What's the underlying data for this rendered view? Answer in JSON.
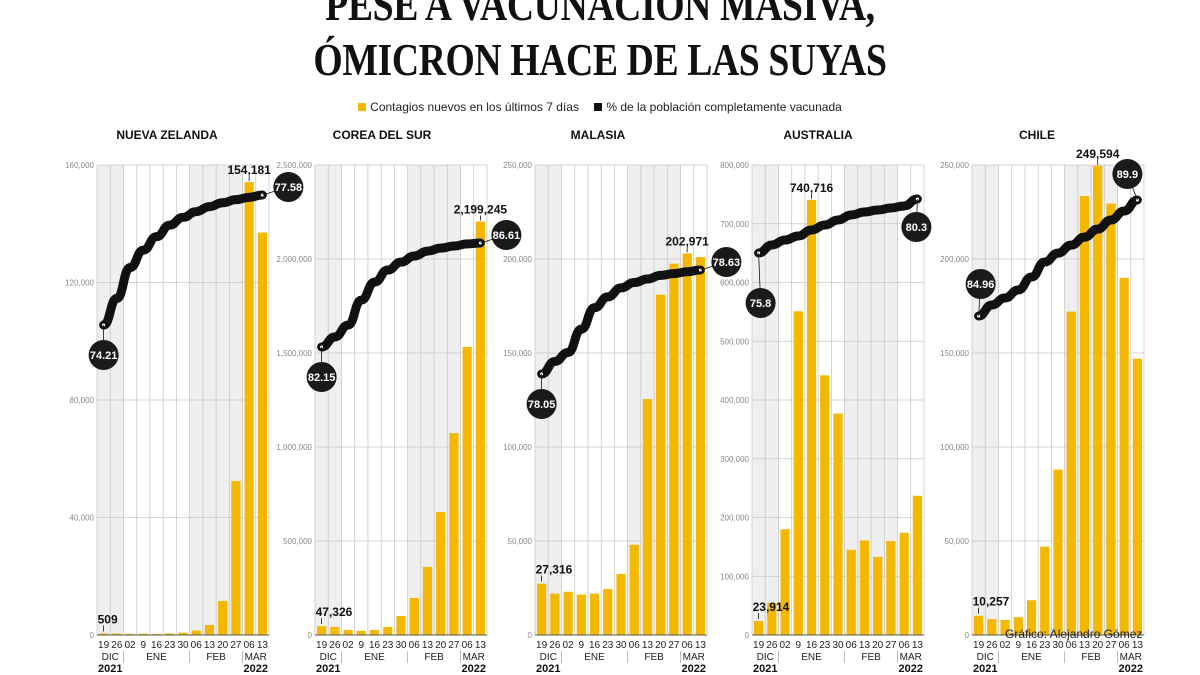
{
  "title": {
    "line1": "PESE A VACUNACIÓN MASIVA,",
    "line2": "ÓMICRON HACE DE LAS SUYAS"
  },
  "legend": {
    "cases_label": "Contagios nuevos en los últimos 7 días",
    "vaccinated_label": "% de la población completamente vacunada"
  },
  "colors": {
    "bar": "#f5b800",
    "line": "#111111",
    "shade": "#efefef",
    "grid": "#c8c8c8"
  },
  "credit": "Gráfico: Alejandro Gómez",
  "chart_data": [
    {
      "type": "bar",
      "title": "NUEVA ZELANDA",
      "categories": [
        "19",
        "26",
        "02",
        "9",
        "16",
        "23",
        "30",
        "06",
        "13",
        "20",
        "27",
        "06",
        "13"
      ],
      "month_labels": [
        {
          "label": "DIC",
          "from": 0,
          "to": 1
        },
        {
          "label": "ENE",
          "from": 2,
          "to": 6
        },
        {
          "label": "FEB",
          "from": 7,
          "to": 10
        },
        {
          "label": "MAR",
          "from": 11,
          "to": 12
        }
      ],
      "year_labels": {
        "start": "2021",
        "end": "2022"
      },
      "yticks": [
        0,
        40000,
        80000,
        120000,
        160000
      ],
      "ytick_labels": [
        "0",
        "40,000",
        "80,000",
        "120,000",
        "160,000"
      ],
      "ylim": [
        0,
        160000
      ],
      "series": [
        {
          "name": "Contagios nuevos en los últimos 7 días",
          "values": [
            509,
            500,
            400,
            450,
            400,
            550,
            800,
            1500,
            3400,
            11600,
            52400,
            154181,
            137000
          ]
        },
        {
          "name": "% de la población completamente vacunada",
          "values": [
            74.21,
            74.9,
            75.7,
            76.15,
            76.5,
            76.8,
            77.0,
            77.15,
            77.28,
            77.38,
            77.46,
            77.52,
            77.58
          ]
        }
      ],
      "annotations": {
        "first_bar": "509",
        "max_bar": "154,181",
        "max_index": 11,
        "line_start": "74.21",
        "line_end": "77.58"
      }
    },
    {
      "type": "bar",
      "title": "COREA DEL SUR",
      "categories": [
        "19",
        "26",
        "02",
        "9",
        "16",
        "23",
        "30",
        "06",
        "13",
        "20",
        "27",
        "06",
        "13"
      ],
      "month_labels": [
        {
          "label": "DIC",
          "from": 0,
          "to": 1
        },
        {
          "label": "ENE",
          "from": 2,
          "to": 6
        },
        {
          "label": "FEB",
          "from": 7,
          "to": 10
        },
        {
          "label": "MAR",
          "from": 11,
          "to": 12
        }
      ],
      "year_labels": {
        "start": "2021",
        "end": "2022"
      },
      "yticks": [
        0,
        500000,
        1000000,
        1500000,
        2000000,
        2500000
      ],
      "ytick_labels": [
        "0",
        "500,000",
        "1,000,000",
        "1,500,000",
        "2,000,000",
        "2,500,000"
      ],
      "ylim": [
        0,
        2500000
      ],
      "series": [
        {
          "name": "Contagios nuevos en los últimos 7 días",
          "values": [
            47326,
            42500,
            27000,
            22000,
            27000,
            43000,
            101000,
            197000,
            362000,
            654000,
            1074000,
            1532000,
            2199245
          ]
        },
        {
          "name": "% de la población completamente vacunada",
          "values": [
            82.15,
            82.58,
            83.09,
            84.16,
            84.93,
            85.45,
            85.79,
            86.05,
            86.26,
            86.39,
            86.48,
            86.57,
            86.61
          ]
        }
      ],
      "annotations": {
        "first_bar": "47,326",
        "max_bar": "2,199,245",
        "max_index": 12,
        "line_start": "82.15",
        "line_end": "86.61"
      }
    },
    {
      "type": "bar",
      "title": "MALASIA",
      "categories": [
        "19",
        "26",
        "02",
        "9",
        "16",
        "23",
        "30",
        "06",
        "13",
        "20",
        "27",
        "06",
        "13"
      ],
      "month_labels": [
        {
          "label": "DIC",
          "from": 0,
          "to": 1
        },
        {
          "label": "ENE",
          "from": 2,
          "to": 6
        },
        {
          "label": "FEB",
          "from": 7,
          "to": 10
        },
        {
          "label": "MAR",
          "from": 11,
          "to": 12
        }
      ],
      "year_labels": {
        "start": "2021",
        "end": "2022"
      },
      "yticks": [
        0,
        50000,
        100000,
        150000,
        200000,
        250000
      ],
      "ytick_labels": [
        "0",
        "50,000",
        "100,000",
        "150,000",
        "200,000",
        "250,000"
      ],
      "ylim": [
        0,
        250000
      ],
      "series": [
        {
          "name": "Contagios nuevos en los últimos 7 días",
          "values": [
            27316,
            22000,
            23000,
            21500,
            22000,
            24500,
            32500,
            48000,
            125500,
            181000,
            197500,
            202971,
            201000
          ]
        },
        {
          "name": "% de la población completamente vacunada",
          "values": [
            78.05,
            78.12,
            78.17,
            78.3,
            78.42,
            78.48,
            78.53,
            78.56,
            78.58,
            78.6,
            78.61,
            78.62,
            78.63
          ]
        }
      ],
      "annotations": {
        "first_bar": "27,316",
        "max_bar": "202,971",
        "max_index": 11,
        "line_start": "78.05",
        "line_end": "78.63"
      }
    },
    {
      "type": "bar",
      "title": "AUSTRALIA",
      "categories": [
        "19",
        "26",
        "02",
        "9",
        "16",
        "23",
        "30",
        "06",
        "13",
        "20",
        "27",
        "06",
        "13"
      ],
      "month_labels": [
        {
          "label": "DIC",
          "from": 0,
          "to": 1
        },
        {
          "label": "ENE",
          "from": 2,
          "to": 6
        },
        {
          "label": "FEB",
          "from": 7,
          "to": 10
        },
        {
          "label": "MAR",
          "from": 11,
          "to": 12
        }
      ],
      "year_labels": {
        "start": "2021",
        "end": "2022"
      },
      "yticks": [
        0,
        100000,
        200000,
        300000,
        400000,
        500000,
        600000,
        700000,
        800000
      ],
      "ytick_labels": [
        "0",
        "100,000",
        "200,000",
        "300,000",
        "400,000",
        "500,000",
        "600,000",
        "700,000",
        "800,000"
      ],
      "ylim": [
        0,
        800000
      ],
      "series": [
        {
          "name": "Contagios nuevos en los últimos 7 días",
          "values": [
            23914,
            54500,
            180000,
            551000,
            740716,
            442000,
            377000,
            145000,
            161000,
            133000,
            160000,
            174000,
            237000
          ]
        },
        {
          "name": "% de la población completamente vacunada",
          "values": [
            75.8,
            76.47,
            76.88,
            77.22,
            77.72,
            78.13,
            78.55,
            78.97,
            79.22,
            79.38,
            79.55,
            79.72,
            80.3
          ]
        }
      ],
      "annotations": {
        "first_bar": "23,914",
        "max_bar": "740,716",
        "max_index": 4,
        "line_start": "75.8",
        "line_end": "80.3"
      }
    },
    {
      "type": "bar",
      "title": "CHILE",
      "categories": [
        "19",
        "26",
        "02",
        "9",
        "16",
        "23",
        "30",
        "06",
        "13",
        "20",
        "27",
        "06",
        "13"
      ],
      "month_labels": [
        {
          "label": "DIC",
          "from": 0,
          "to": 1
        },
        {
          "label": "ENE",
          "from": 2,
          "to": 6
        },
        {
          "label": "FEB",
          "from": 7,
          "to": 10
        },
        {
          "label": "MAR",
          "from": 11,
          "to": 12
        }
      ],
      "year_labels": {
        "start": "2021",
        "end": "2022"
      },
      "yticks": [
        0,
        50000,
        100000,
        150000,
        200000,
        250000
      ],
      "ytick_labels": [
        "0",
        "50,000",
        "100,000",
        "150,000",
        "200,000",
        "250,000"
      ],
      "ylim": [
        0,
        250000
      ],
      "series": [
        {
          "name": "Contagios nuevos en los últimos 7 días",
          "values": [
            10257,
            8500,
            8000,
            9500,
            18500,
            47000,
            88000,
            172000,
            233500,
            249594,
            229500,
            190000,
            147000
          ]
        },
        {
          "name": "% de la población completamente vacunada",
          "values": [
            84.96,
            85.43,
            85.73,
            86.07,
            86.62,
            87.26,
            87.64,
            87.98,
            88.32,
            88.66,
            89.05,
            89.43,
            89.9
          ]
        }
      ],
      "annotations": {
        "first_bar": "10,257",
        "max_bar": "249,594",
        "max_index": 9,
        "line_start": "84.96",
        "line_end": "89.9"
      }
    }
  ]
}
